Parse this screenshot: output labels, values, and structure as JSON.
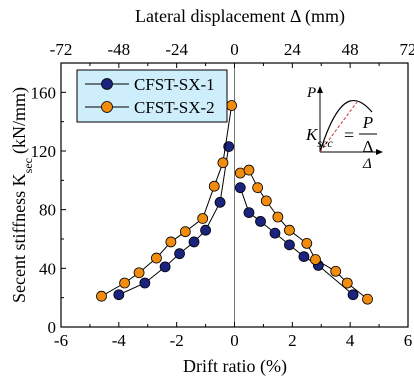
{
  "chart_data": {
    "type": "scatter",
    "xlabel": "Drift ratio (%)",
    "ylabel_main": "Secent stiffness K",
    "ylabel_sub": "sec",
    "ylabel_unit": "(kN/mm)",
    "top_xlabel": "Lateral displacement Δ (mm)",
    "xlim": [
      -6,
      6
    ],
    "ylim": [
      0,
      180
    ],
    "top_xlim": [
      -72,
      72
    ],
    "xticks": [
      "-6",
      "-4",
      "-2",
      "0",
      "2",
      "4",
      "6"
    ],
    "yticks": [
      "0",
      "40",
      "80",
      "120",
      "160"
    ],
    "top_xticks": [
      "-72",
      "-48",
      "-24",
      "0",
      "24",
      "48",
      "72"
    ],
    "legend_position": "top-left",
    "series": [
      {
        "name": "CFST-SX-1",
        "color": "#1a237e",
        "negative": {
          "x": [
            -4.0,
            -3.1,
            -2.4,
            -1.9,
            -1.4,
            -1.0,
            -0.5,
            -0.2
          ],
          "y": [
            22,
            30,
            41,
            50,
            58,
            66,
            85,
            123
          ]
        },
        "positive": {
          "x": [
            0.2,
            0.5,
            0.9,
            1.4,
            1.9,
            2.4,
            2.9,
            4.1
          ],
          "y": [
            95,
            78,
            72,
            64,
            56,
            48,
            42,
            22
          ]
        }
      },
      {
        "name": "CFST-SX-2",
        "color": "#f28c0f",
        "negative": {
          "x": [
            -4.6,
            -3.8,
            -3.3,
            -2.7,
            -2.2,
            -1.7,
            -1.1,
            -0.7,
            -0.4,
            -0.1
          ],
          "y": [
            21,
            30,
            37,
            47,
            58,
            65,
            74,
            96,
            112,
            151
          ]
        },
        "positive": {
          "x": [
            0.2,
            0.5,
            0.8,
            1.1,
            1.5,
            1.9,
            2.5,
            2.8,
            3.5,
            3.9,
            4.6
          ],
          "y": [
            105,
            107,
            95,
            86,
            75,
            66,
            57,
            46,
            38,
            30,
            19
          ]
        }
      }
    ],
    "inset": {
      "ylabel": "P",
      "xlabel": "Δ",
      "formula_lhs": "K",
      "formula_sub": "sec",
      "formula_num": "P",
      "formula_den": "Δ"
    }
  }
}
